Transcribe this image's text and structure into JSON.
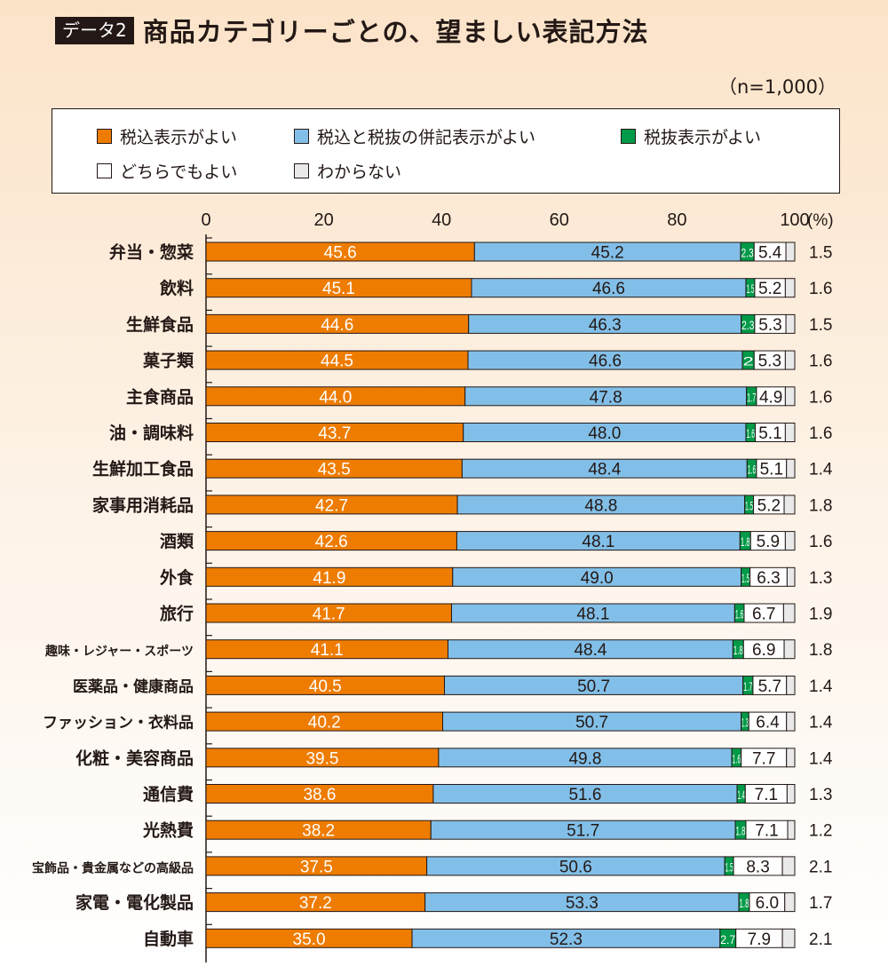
{
  "header": {
    "badge": "データ2",
    "title": "商品カテゴリーごとの、望ましい表記方法",
    "sample": "（n=1,000）"
  },
  "colors": {
    "tax_inclusive": "#ee7c00",
    "both": "#82bfe8",
    "tax_exclusive": "#009a48",
    "either": "#ffffff",
    "unknown": "#e9e9e9"
  },
  "chart_data": {
    "type": "bar",
    "orientation": "horizontal",
    "stacked": true,
    "title": "商品カテゴリーごとの、望ましい表記方法",
    "note": "（n=1,000）",
    "xlim": [
      0,
      100
    ],
    "xticks": [
      0,
      20,
      40,
      60,
      80,
      100
    ],
    "xunit": "(%)",
    "legend_position": "top",
    "grid": false,
    "categories": [
      "弁当・惣菜",
      "飲料",
      "生鮮食品",
      "菓子類",
      "主食商品",
      "油・調味料",
      "生鮮加工食品",
      "家事用消耗品",
      "酒類",
      "外食",
      "旅行",
      "趣味・レジャー・スポーツ",
      "医薬品・健康商品",
      "ファッション・衣料品",
      "化粧・美容商品",
      "通信費",
      "光熱費",
      "宝飾品・貴金属などの高級品",
      "家電・電化製品",
      "自動車"
    ],
    "series": [
      {
        "name": "税込表示がよい",
        "color": "#ee7c00",
        "values": [
          45.6,
          45.1,
          44.6,
          44.5,
          44.0,
          43.7,
          43.5,
          42.7,
          42.6,
          41.9,
          41.7,
          41.1,
          40.5,
          40.2,
          39.5,
          38.6,
          38.2,
          37.5,
          37.2,
          35.0
        ],
        "labels": [
          "45.6",
          "45.1",
          "44.6",
          "44.5",
          "44.0",
          "43.7",
          "43.5",
          "42.7",
          "42.6",
          "41.9",
          "41.7",
          "41.1",
          "40.5",
          "40.2",
          "39.5",
          "38.6",
          "38.2",
          "37.5",
          "37.2",
          "35.0"
        ]
      },
      {
        "name": "税込と税抜の併記表示がよい",
        "color": "#82bfe8",
        "values": [
          45.2,
          46.6,
          46.3,
          46.6,
          47.8,
          48.0,
          48.4,
          48.8,
          48.1,
          49.0,
          48.1,
          48.4,
          50.7,
          50.7,
          49.8,
          51.6,
          51.7,
          50.6,
          53.3,
          52.3
        ],
        "labels": [
          "45.2",
          "46.6",
          "46.3",
          "46.6",
          "47.8",
          "48.0",
          "48.4",
          "48.8",
          "48.1",
          "49.0",
          "48.1",
          "48.4",
          "50.7",
          "50.7",
          "49.8",
          "51.6",
          "51.7",
          "50.6",
          "53.3",
          "52.3"
        ]
      },
      {
        "name": "税抜表示がよい",
        "color": "#009a48",
        "values": [
          2.3,
          1.5,
          2.3,
          2.0,
          1.7,
          1.6,
          1.6,
          1.5,
          1.8,
          1.5,
          1.6,
          1.8,
          1.7,
          1.3,
          1.6,
          1.4,
          1.8,
          1.5,
          1.8,
          2.7
        ],
        "labels": [
          "2.3",
          "1.5",
          "2.3",
          "2",
          "1.7",
          "1.6",
          "1.6",
          "1.5",
          "1.8",
          "1.5",
          "1.6",
          "1.8",
          "1.7",
          "1.3",
          "1.6",
          "1.4",
          "1.8",
          "1.5",
          "1.8",
          "2.7"
        ]
      },
      {
        "name": "どちらでもよい",
        "color": "#ffffff",
        "values": [
          5.4,
          5.2,
          5.3,
          5.3,
          4.9,
          5.1,
          5.1,
          5.2,
          5.9,
          6.3,
          6.7,
          6.9,
          5.7,
          6.4,
          7.7,
          7.1,
          7.1,
          8.3,
          6.0,
          7.9
        ],
        "labels": [
          "5.4",
          "5.2",
          "5.3",
          "5.3",
          "4.9",
          "5.1",
          "5.1",
          "5.2",
          "5.9",
          "6.3",
          "6.7",
          "6.9",
          "5.7",
          "6.4",
          "7.7",
          "7.1",
          "7.1",
          "8.3",
          "6.0",
          "7.9"
        ]
      },
      {
        "name": "わからない",
        "color": "#e9e9e9",
        "values": [
          1.5,
          1.6,
          1.5,
          1.6,
          1.6,
          1.6,
          1.4,
          1.8,
          1.6,
          1.3,
          1.9,
          1.8,
          1.4,
          1.4,
          1.4,
          1.3,
          1.2,
          2.1,
          1.7,
          2.1
        ],
        "labels": [
          "1.5",
          "1.6",
          "1.5",
          "1.6",
          "1.6",
          "1.6",
          "1.4",
          "1.8",
          "1.6",
          "1.3",
          "1.9",
          "1.8",
          "1.4",
          "1.4",
          "1.4",
          "1.3",
          "1.2",
          "2.1",
          "1.7",
          "2.1"
        ]
      }
    ]
  }
}
